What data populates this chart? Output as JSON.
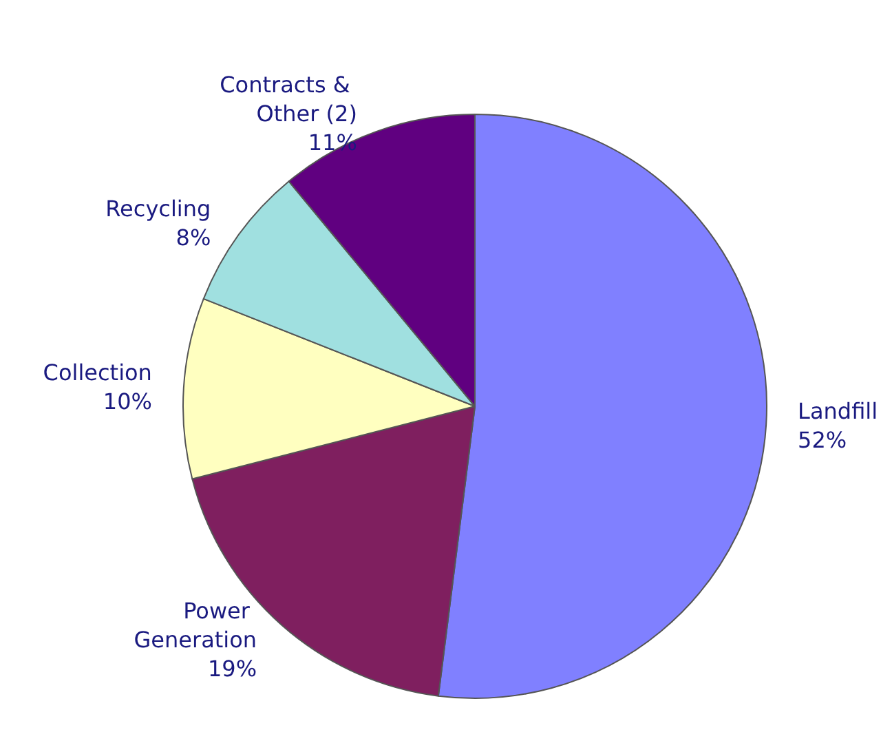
{
  "chart_data": {
    "type": "pie",
    "categories": [
      "Landfill",
      "Power Generation",
      "Collection",
      "Recycling",
      "Contracts & Other (2)"
    ],
    "values": [
      52,
      19,
      10,
      8,
      11
    ],
    "value_labels": [
      "52%",
      "19%",
      "10%",
      "8%",
      "11%"
    ],
    "colors": [
      "#8080ff",
      "#7f1f5f",
      "#ffffc0",
      "#a0e0e0",
      "#600080"
    ]
  }
}
